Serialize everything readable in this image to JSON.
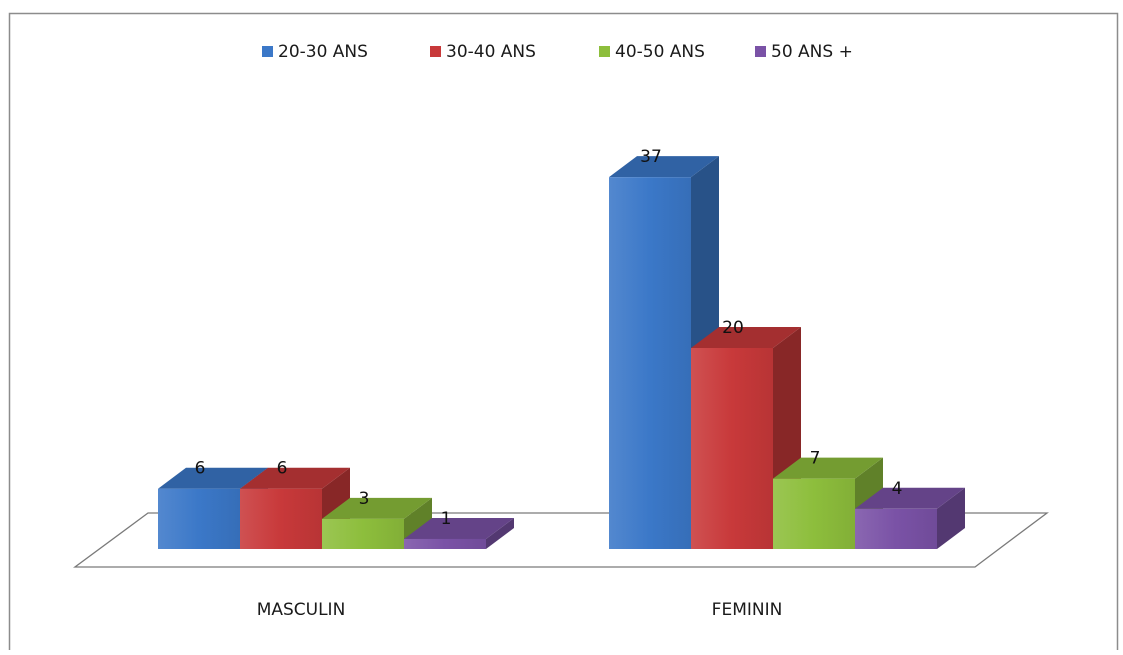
{
  "chart_data": {
    "type": "bar",
    "style": "3d-clustered-column",
    "categories": [
      "MASCULIN",
      "FEMININ"
    ],
    "series": [
      {
        "name": "20-30 ANS",
        "values": [
          6,
          37
        ],
        "color": "#3B78C8"
      },
      {
        "name": "30-40 ANS",
        "values": [
          6,
          20
        ],
        "color": "#C8393A"
      },
      {
        "name": "40-50 ANS",
        "values": [
          3,
          7
        ],
        "color": "#8DBE3C"
      },
      {
        "name": "50 ANS +",
        "values": [
          1,
          4
        ],
        "color": "#7A52A6"
      }
    ],
    "legend_position": "top",
    "data_labels": true,
    "grid": false,
    "ylim": [
      0,
      40
    ]
  }
}
